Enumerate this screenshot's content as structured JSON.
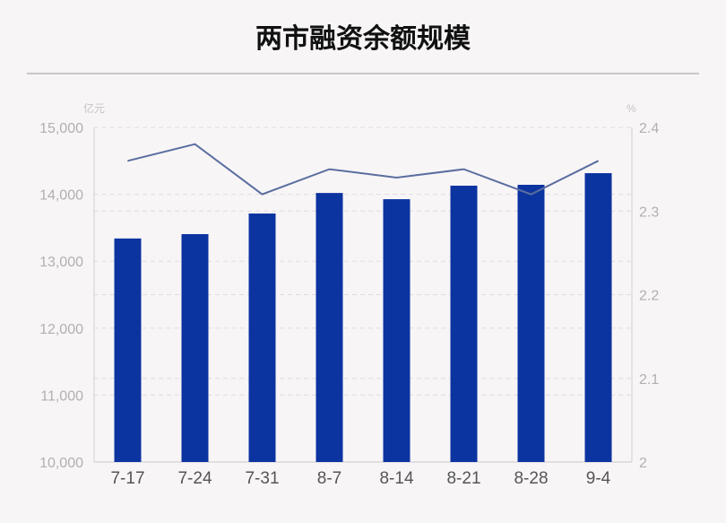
{
  "chart_data": {
    "type": "bar+line",
    "title": "两市融资余额规模",
    "categories": [
      "7-17",
      "7-24",
      "7-31",
      "8-7",
      "8-14",
      "8-21",
      "8-28",
      "9-4"
    ],
    "series": [
      {
        "type": "bar",
        "axis": "left",
        "values": [
          13340,
          13405,
          13713,
          14020,
          13927,
          14129,
          14142,
          14316
        ],
        "color": "#0c34a0"
      },
      {
        "type": "line",
        "axis": "right",
        "values": [
          2.36,
          2.38,
          2.32,
          2.35,
          2.34,
          2.35,
          2.32,
          2.36
        ],
        "color": "#5a6e9e"
      }
    ],
    "left_axis": {
      "unit": "亿元",
      "ylim": [
        10000,
        15000
      ],
      "ticks": [
        "10,000",
        "11,000",
        "12,000",
        "13,000",
        "14,000",
        "15,000"
      ]
    },
    "right_axis": {
      "unit": "%",
      "ylim": [
        2,
        2.4
      ],
      "ticks": [
        "2",
        "2.1",
        "2.2",
        "2.3",
        "2.4"
      ]
    },
    "grid": true
  }
}
